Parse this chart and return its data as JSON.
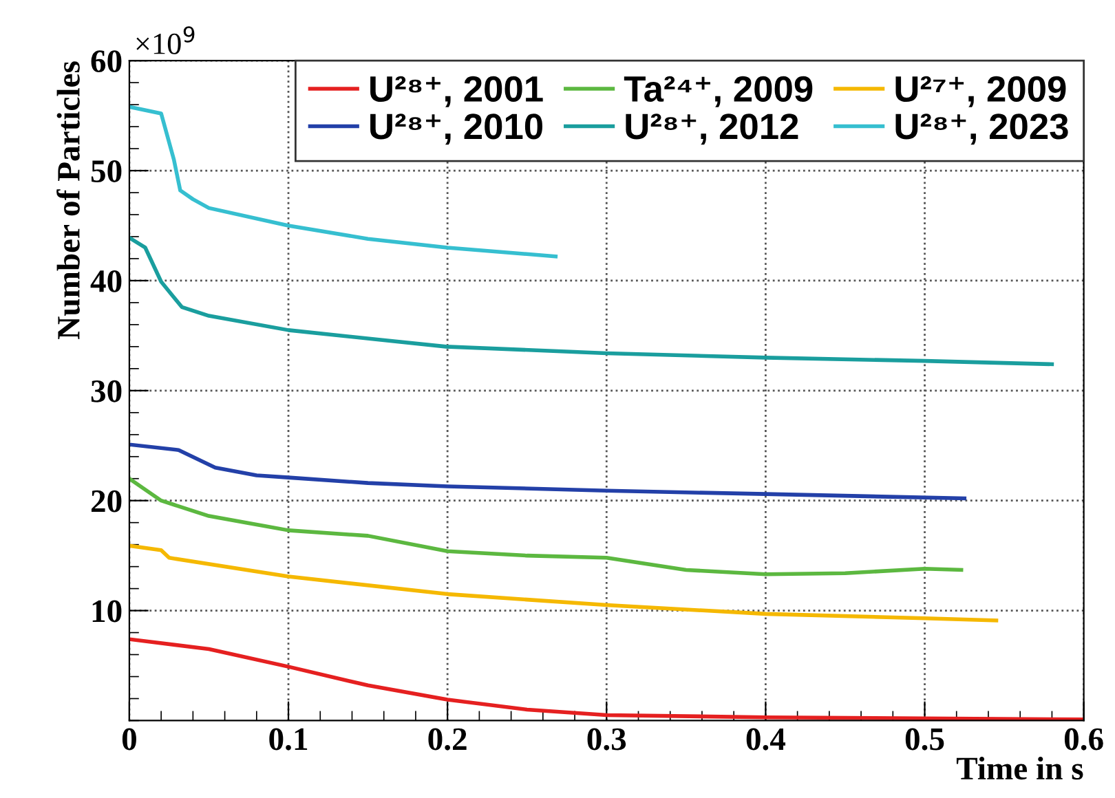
{
  "chart_data": {
    "type": "line",
    "xlabel": "Time in s",
    "ylabel": "Number of Particles",
    "annotations": [
      "×10$^{9}$"
    ],
    "xlim": [
      0,
      0.6
    ],
    "xticks": [
      0,
      0.1,
      0.2,
      0.3,
      0.4,
      0.5,
      0.6
    ],
    "ylim": [
      0,
      60
    ],
    "yticks": [
      10,
      20,
      30,
      40,
      50,
      60
    ],
    "grid": true,
    "legend": "top right",
    "line_style": "solid",
    "marker": "none",
    "series": [
      {
        "name": "U²⁸⁺, 2001",
        "color": "#e52020",
        "x": [
          0,
          0.05,
          0.1,
          0.15,
          0.2,
          0.25,
          0.3,
          0.4,
          0.5,
          0.6
        ],
        "values": [
          7.4,
          6.5,
          4.9,
          3.2,
          1.9,
          1.0,
          0.5,
          0.3,
          0.2,
          0.1
        ]
      },
      {
        "name": "Ta²⁴⁺, 2009",
        "color": "#5cb840",
        "x": [
          0,
          0.02,
          0.05,
          0.1,
          0.15,
          0.2,
          0.25,
          0.3,
          0.35,
          0.4,
          0.45,
          0.5,
          0.523
        ],
        "values": [
          22.0,
          20.0,
          18.6,
          17.3,
          16.8,
          15.4,
          15.0,
          14.8,
          13.7,
          13.3,
          13.4,
          13.8,
          13.7
        ]
      },
      {
        "name": "U²⁷⁺, 2009",
        "color": "#f5b800",
        "x": [
          0,
          0.02,
          0.025,
          0.1,
          0.2,
          0.3,
          0.4,
          0.5,
          0.545
        ],
        "values": [
          15.9,
          15.5,
          14.8,
          13.1,
          11.5,
          10.5,
          9.7,
          9.3,
          9.1
        ]
      },
      {
        "name": "U²⁸⁺, 2010",
        "color": "#2340a8",
        "x": [
          0,
          0.031,
          0.054,
          0.08,
          0.1,
          0.15,
          0.2,
          0.3,
          0.4,
          0.525
        ],
        "values": [
          25.1,
          24.6,
          23.0,
          22.3,
          22.1,
          21.6,
          21.3,
          20.9,
          20.6,
          20.2
        ]
      },
      {
        "name": "U²⁸⁺, 2012",
        "color": "#1a9e9e",
        "x": [
          0,
          0.01,
          0.02,
          0.033,
          0.05,
          0.1,
          0.159,
          0.199,
          0.3,
          0.4,
          0.5,
          0.58
        ],
        "values": [
          43.9,
          43.0,
          39.9,
          37.6,
          36.8,
          35.5,
          34.6,
          34.0,
          33.4,
          33.0,
          32.7,
          32.4
        ]
      },
      {
        "name": "U²⁸⁺, 2023",
        "color": "#36bfd0",
        "x": [
          0,
          0.02,
          0.028,
          0.032,
          0.04,
          0.05,
          0.1,
          0.15,
          0.2,
          0.268
        ],
        "values": [
          55.8,
          55.2,
          51.0,
          48.2,
          47.4,
          46.6,
          45.0,
          43.8,
          43.0,
          42.2
        ]
      }
    ]
  }
}
